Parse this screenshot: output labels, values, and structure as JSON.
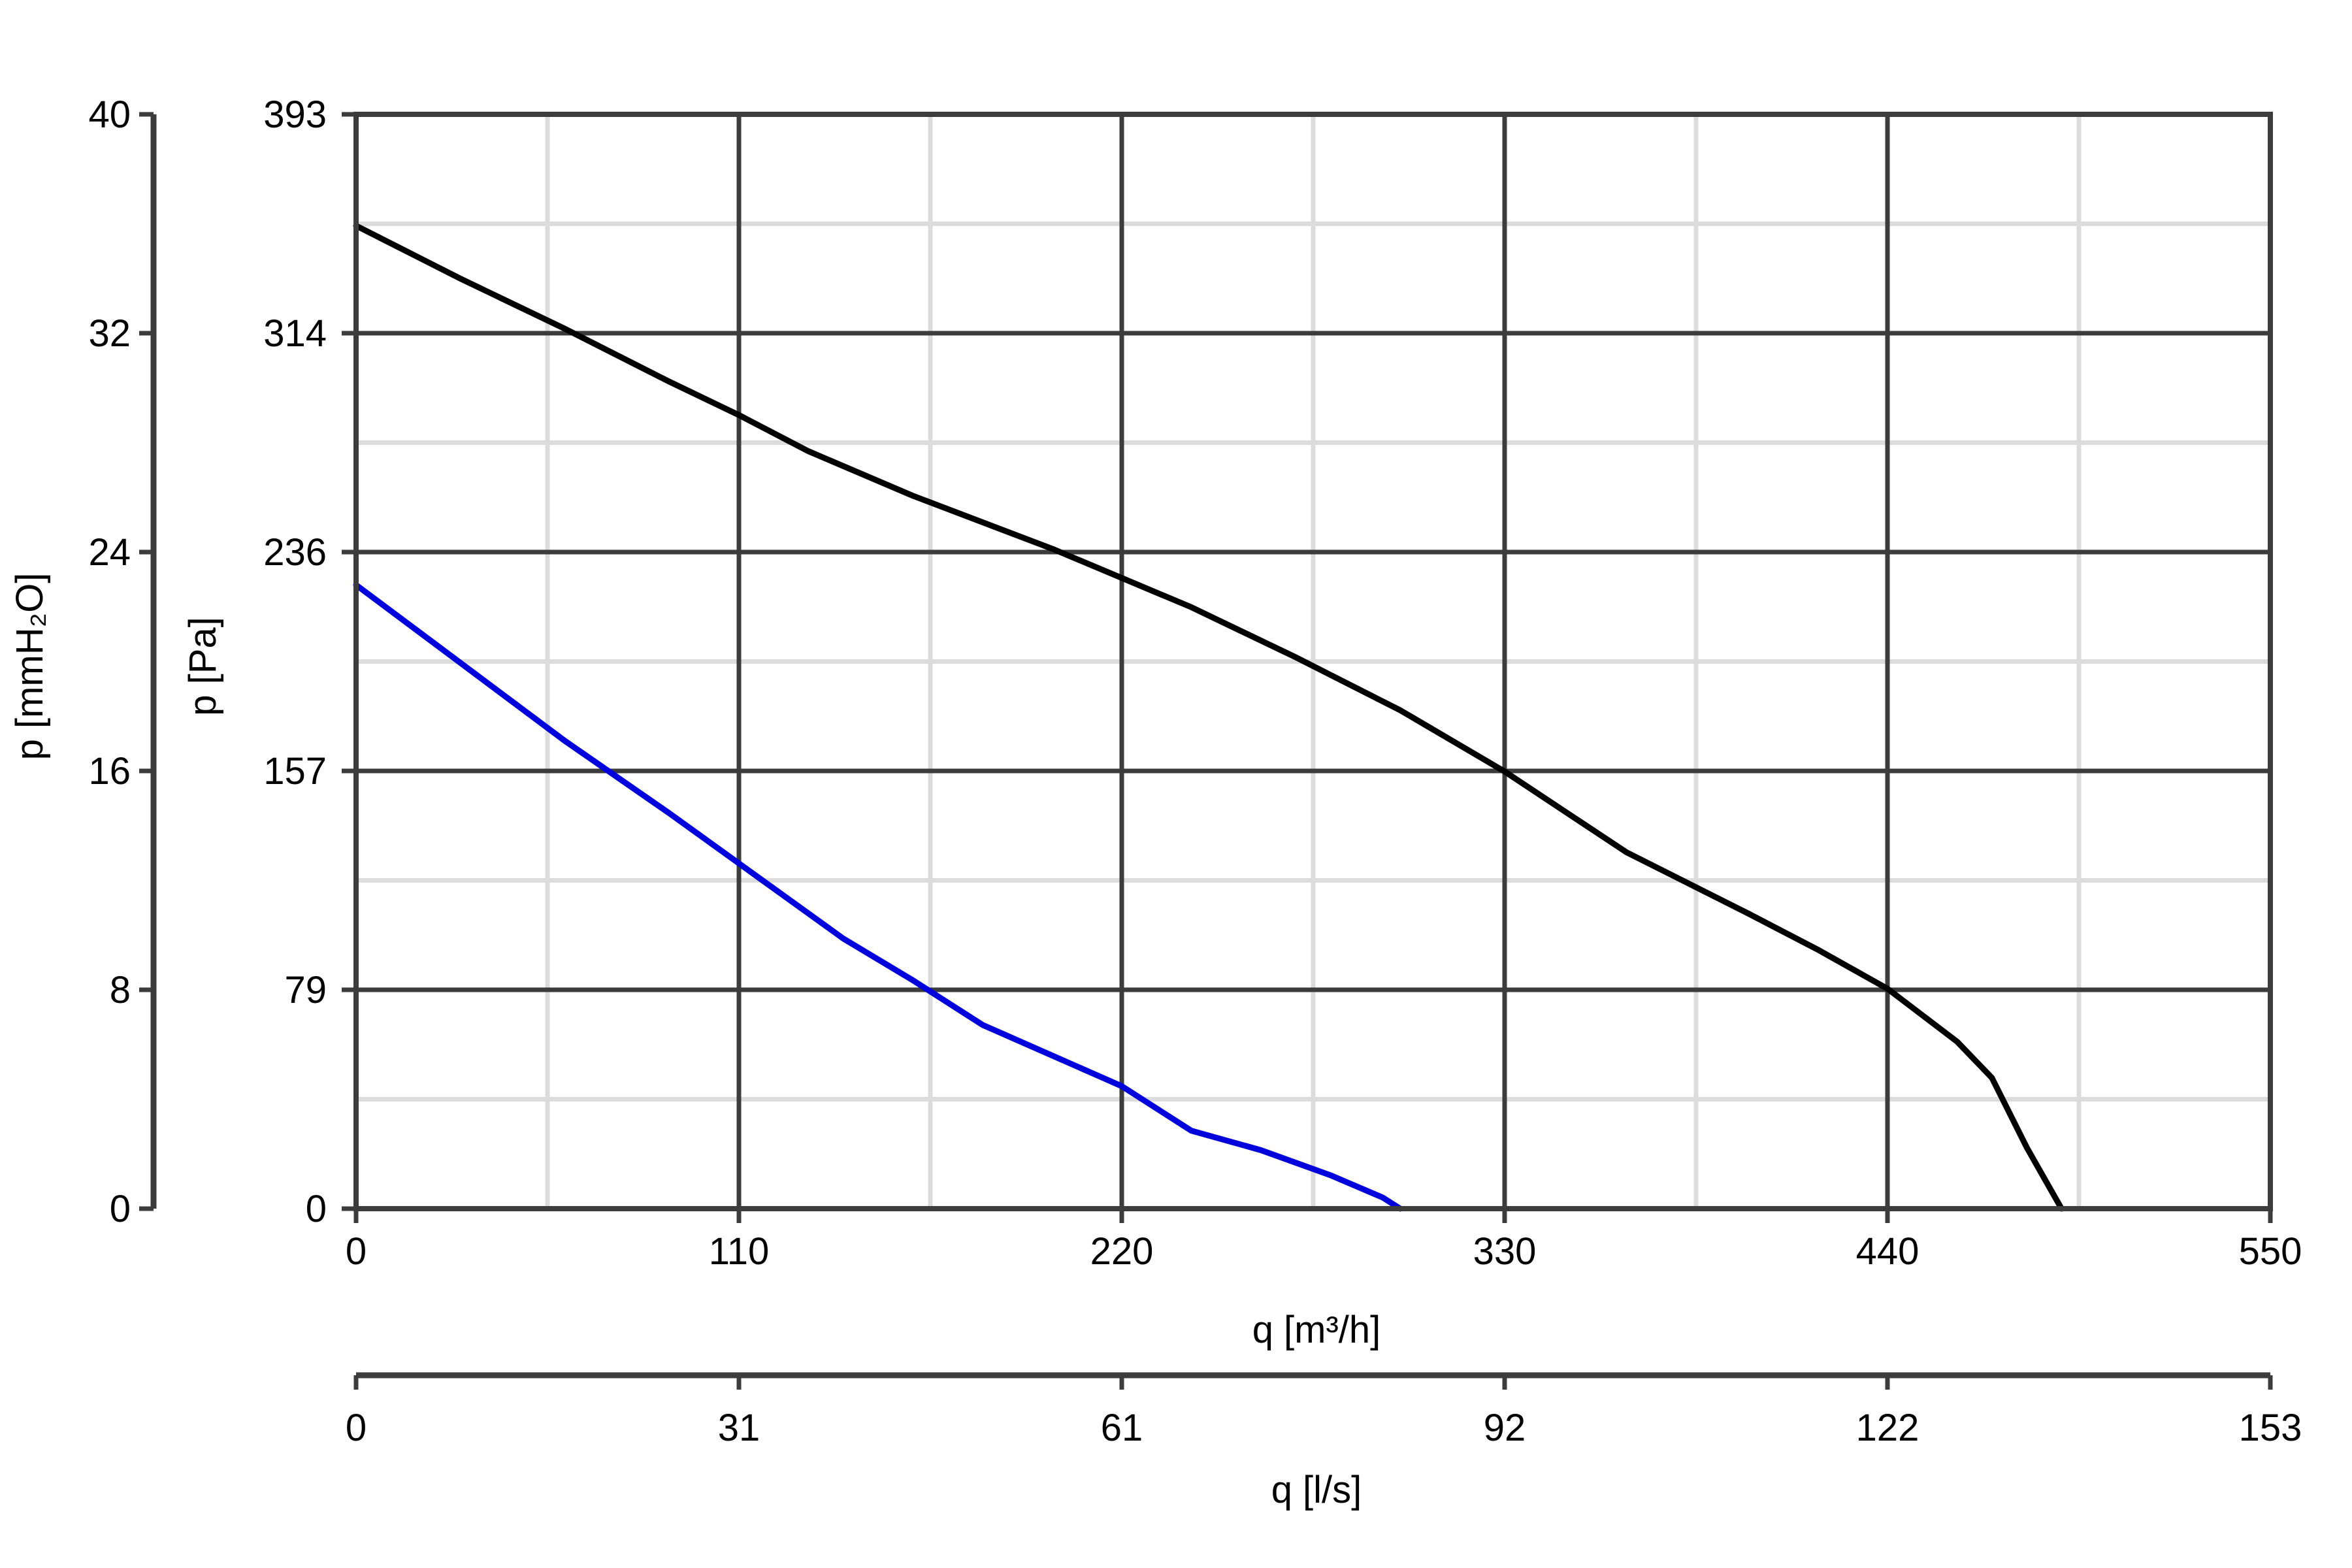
{
  "chart_data": {
    "type": "line",
    "title": "",
    "xlabel": "q [m³/h]",
    "xlabel_secondary": "q [l/s]",
    "ylabel": "p [Pa]",
    "ylabel_secondary": "p [mmH₂O]",
    "xlim": [
      0,
      550
    ],
    "ylim": [
      0,
      393
    ],
    "grid": true,
    "x_ticks": [
      "0",
      "110",
      "220",
      "330",
      "440",
      "550"
    ],
    "x_ticks_secondary": [
      "0",
      "31",
      "61",
      "92",
      "122",
      "153"
    ],
    "y_ticks": [
      "0",
      "79",
      "157",
      "236",
      "314",
      "393"
    ],
    "y_ticks_secondary": [
      "0",
      "8",
      "16",
      "24",
      "32",
      "40"
    ],
    "series": [
      {
        "color": "#000000",
        "x": [
          0,
          30,
          60,
          90,
          110,
          130,
          160,
          200,
          240,
          270,
          300,
          330,
          365,
          400,
          420,
          440,
          460,
          470,
          480,
          490
        ],
        "y": [
          353,
          334,
          316,
          297,
          285,
          272,
          256,
          237,
          216,
          198,
          179,
          157,
          128,
          106,
          93,
          79,
          60,
          47,
          22,
          0
        ]
      },
      {
        "color": "#0000dd",
        "x": [
          0,
          30,
          60,
          90,
          110,
          140,
          160,
          180,
          200,
          220,
          240,
          260,
          280,
          295,
          300
        ],
        "y": [
          224,
          196,
          168,
          142,
          124,
          97,
          82,
          66,
          55,
          44,
          28,
          21,
          12,
          4,
          0
        ]
      }
    ]
  }
}
